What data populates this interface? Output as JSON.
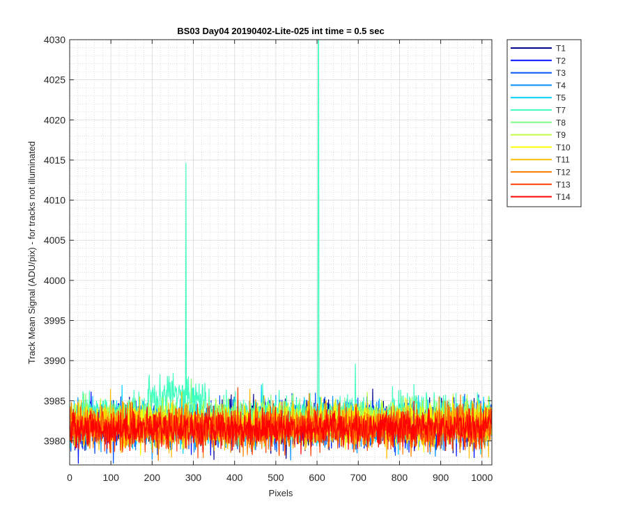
{
  "chart_data": {
    "type": "line",
    "title": "BS03 Day04 20190402-Lite-025 int time = 0.5 sec",
    "xlabel": "Pixels",
    "ylabel": "Track Mean Signal (ADU/pix) - for tracks not illuminated",
    "xlim": [
      0,
      1024
    ],
    "ylim": [
      3977,
      4030
    ],
    "x_ticks": [
      0,
      100,
      200,
      300,
      400,
      500,
      600,
      700,
      800,
      900,
      1000
    ],
    "y_ticks": [
      3980,
      3985,
      3990,
      3995,
      4000,
      4005,
      4010,
      4015,
      4020,
      4025,
      4030
    ],
    "grid": "on (major and minor)",
    "legend_position": "outside-right",
    "n_points_per_series": 1024,
    "series": [
      {
        "name": "T1",
        "color": "#00008f",
        "mean": 3982.2,
        "noise": 1.3
      },
      {
        "name": "T2",
        "color": "#0010ff",
        "mean": 3982.0,
        "noise": 1.3
      },
      {
        "name": "T3",
        "color": "#0050ff",
        "mean": 3982.1,
        "noise": 1.3
      },
      {
        "name": "T4",
        "color": "#0090ff",
        "mean": 3982.0,
        "noise": 1.3
      },
      {
        "name": "T5",
        "color": "#00d0ff",
        "mean": 3982.3,
        "noise": 1.3
      },
      {
        "name": "T7",
        "color": "#40ffbf",
        "mean": 3983.2,
        "noise": 1.2,
        "bumps": [
          [
            190,
            330,
            3985.5
          ]
        ],
        "spikes": [
          [
            282,
            4014.6
          ],
          [
            603,
            4030.0
          ],
          [
            604,
            4030.0
          ],
          [
            693,
            3989.6
          ]
        ]
      },
      {
        "name": "T8",
        "color": "#80ff80",
        "mean": 3982.6,
        "noise": 1.2
      },
      {
        "name": "T9",
        "color": "#bfff40",
        "mean": 3982.4,
        "noise": 1.2
      },
      {
        "name": "T10",
        "color": "#ffff00",
        "mean": 3982.2,
        "noise": 1.2
      },
      {
        "name": "T11",
        "color": "#ffbf00",
        "mean": 3981.8,
        "noise": 1.3
      },
      {
        "name": "T12",
        "color": "#ff8000",
        "mean": 3981.6,
        "noise": 1.3
      },
      {
        "name": "T13",
        "color": "#ff4000",
        "mean": 3981.5,
        "noise": 1.2
      },
      {
        "name": "T14",
        "color": "#ff0000",
        "mean": 3981.6,
        "noise": 1.1
      }
    ]
  }
}
